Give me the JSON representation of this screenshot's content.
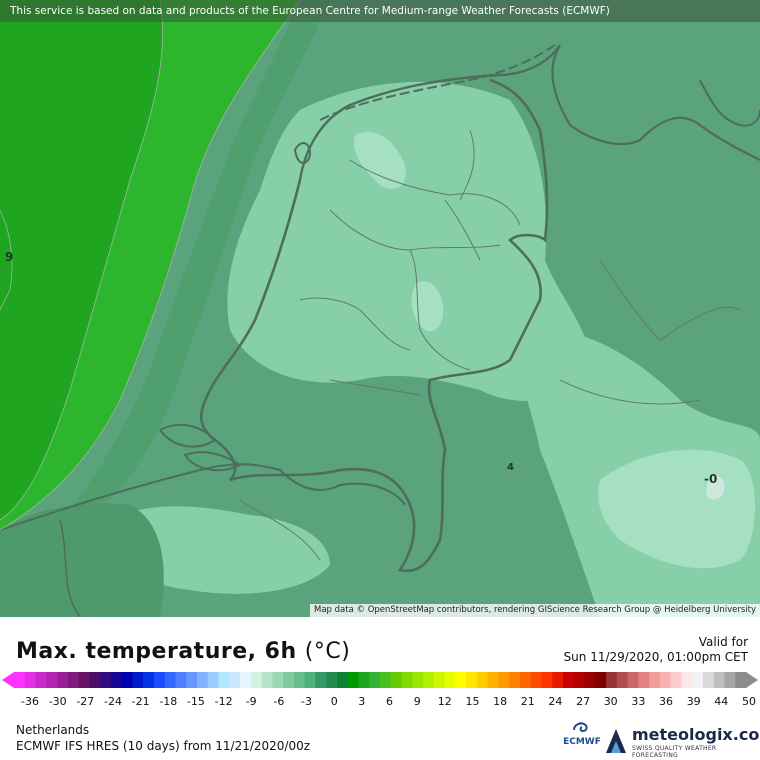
{
  "banner": "This service is based on data and products of the European Centre for Medium-range Weather Forecasts (ECMWF)",
  "attribution": "Map data © OpenStreetMap contributors, rendering GIScience Research Group @ Heidelberg University",
  "map": {
    "region": "Netherlands",
    "isotherm_labels": [
      {
        "text": "9"
      },
      {
        "text": "4"
      },
      {
        "text": "-0"
      }
    ],
    "colors": {
      "sea_dark": "#1fa51f",
      "sea_mid": "#2db52d",
      "land_cool": "#5aa37c",
      "land_light": "#86cfa8",
      "land_lighter": "#a6e0c2",
      "border": "#4e6e5a"
    }
  },
  "legend": {
    "title": "Max. temperature, 6h",
    "unit": "(°C)",
    "valid_label": "Valid for",
    "valid_time": "Sun 11/29/2020, 01:00pm CET",
    "ticks": [
      "-36",
      "-30",
      "-27",
      "-24",
      "-21",
      "-18",
      "-15",
      "-12",
      "-9",
      "-6",
      "-3",
      "0",
      "3",
      "6",
      "9",
      "12",
      "15",
      "18",
      "21",
      "24",
      "27",
      "30",
      "33",
      "36",
      "39",
      "44",
      "50"
    ],
    "colorbar": [
      "#ff33ff",
      "#e62ee6",
      "#cc29cc",
      "#b324b3",
      "#991f99",
      "#801a80",
      "#661466",
      "#4d0f66",
      "#330a80",
      "#1a0599",
      "#0000b3",
      "#0019cc",
      "#0033e6",
      "#1a4dff",
      "#3366ff",
      "#4d80ff",
      "#6699ff",
      "#80b3ff",
      "#99ccff",
      "#b3e6ff",
      "#cce6ff",
      "#e6f5ff",
      "#d4f2e0",
      "#b3e6c9",
      "#99d9b3",
      "#80cca0",
      "#66bf8c",
      "#4db37a",
      "#339966",
      "#1f8c4d",
      "#0d8033",
      "#009900",
      "#1aa61a",
      "#33b233",
      "#4dbf1a",
      "#66cc00",
      "#80d900",
      "#99e600",
      "#b3f000",
      "#ccf700",
      "#e6ff00",
      "#ffff00",
      "#ffe600",
      "#ffcc00",
      "#ffb300",
      "#ff9900",
      "#ff8000",
      "#ff6600",
      "#ff4d00",
      "#ff3300",
      "#e61a00",
      "#cc0000",
      "#b30000",
      "#990000",
      "#800000",
      "#993333",
      "#b34d4d",
      "#cc6666",
      "#e68080",
      "#f29999",
      "#f7b3b3",
      "#fccccc",
      "#ffe6e6",
      "#f2f2f2",
      "#d9d9d9",
      "#bfbfbf",
      "#a6a6a6",
      "#8c8c8c"
    ],
    "location": "Netherlands",
    "model": "ECMWF IFS HRES (10 days) from 11/21/2020/00z"
  },
  "branding": {
    "ecmwf": "ECMWF",
    "meteologix": "meteologix.com",
    "tagline": "SWISS QUALITY WEATHER FORECASTING"
  }
}
